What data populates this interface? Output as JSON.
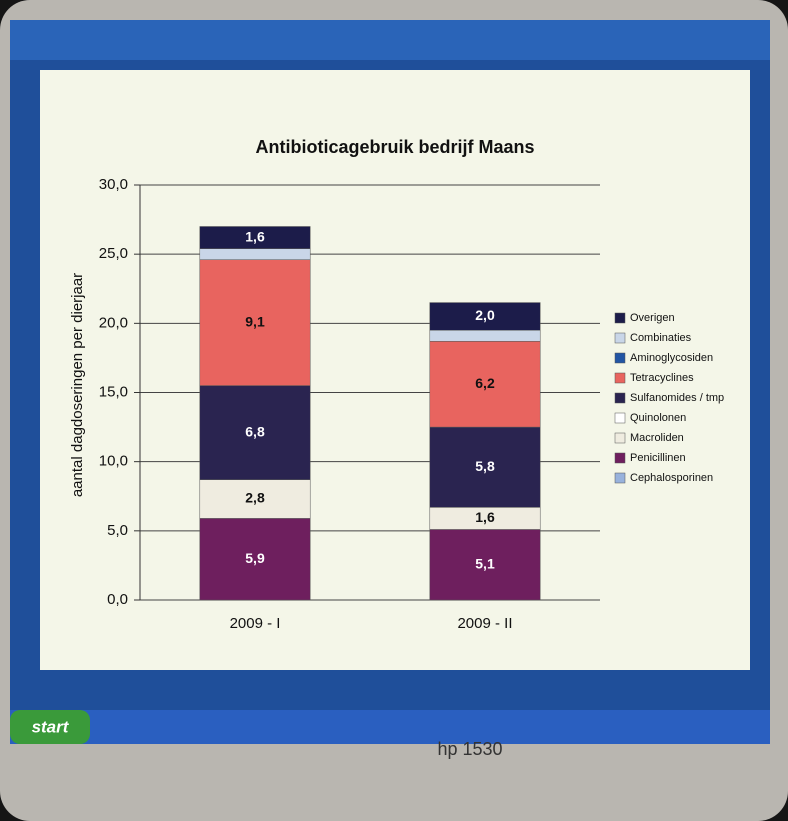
{
  "chart_data": {
    "type": "stacked_bar",
    "title": "Antibioticagebruik bedrijf Maans",
    "y_label": "aantal dagdoseringen per dierjaar",
    "categories": [
      "2009 - I",
      "2009 - II"
    ],
    "series": [
      {
        "name": "Overigen",
        "color": "#1c1c4a",
        "values": [
          1.6,
          2.0
        ],
        "value_labels": [
          "1,6",
          "2,0"
        ]
      },
      {
        "name": "Combinaties",
        "color": "#c9d6e8",
        "values": [
          0.8,
          0.8
        ],
        "value_labels": [
          null,
          null
        ]
      },
      {
        "name": "Aminoglycosiden",
        "color": "#2255a4",
        "values": [
          0,
          0
        ],
        "value_labels": [
          null,
          null
        ]
      },
      {
        "name": "Tetracyclines",
        "color": "#e8645f",
        "values": [
          9.1,
          6.2
        ],
        "value_labels": [
          "9,1",
          "6,2"
        ]
      },
      {
        "name": "Sulfanomides / tmp",
        "color": "#2a2450",
        "values": [
          6.8,
          5.8
        ],
        "value_labels": [
          "6,8",
          "5,8"
        ]
      },
      {
        "name": "Quinolonen",
        "color": "#ffffff",
        "values": [
          0,
          0
        ],
        "value_labels": [
          null,
          null
        ]
      },
      {
        "name": "Macroliden",
        "color": "#efece0",
        "values": [
          2.8,
          1.6
        ],
        "value_labels": [
          "2,8",
          "1,6"
        ]
      },
      {
        "name": "Penicillinen",
        "color": "#6e1f5e",
        "values": [
          5.9,
          5.1
        ],
        "value_labels": [
          "5,9",
          "5,1"
        ]
      },
      {
        "name": "Cephalosporinen",
        "color": "#98b2dc",
        "values": [
          0,
          0
        ],
        "value_labels": [
          null,
          null
        ]
      }
    ],
    "ylim": [
      0,
      30
    ],
    "yticks": [
      {
        "value": 0,
        "label": "0,0"
      },
      {
        "value": 5,
        "label": "5,0"
      },
      {
        "value": 10,
        "label": "10,0"
      },
      {
        "value": 15,
        "label": "15,0"
      },
      {
        "value": 20,
        "label": "20,0"
      },
      {
        "value": 25,
        "label": "25,0"
      },
      {
        "value": 30,
        "label": "30,0"
      }
    ],
    "grid": true,
    "legend": "right"
  },
  "monitor": {
    "start_button": "start",
    "model": "hp 1530"
  }
}
